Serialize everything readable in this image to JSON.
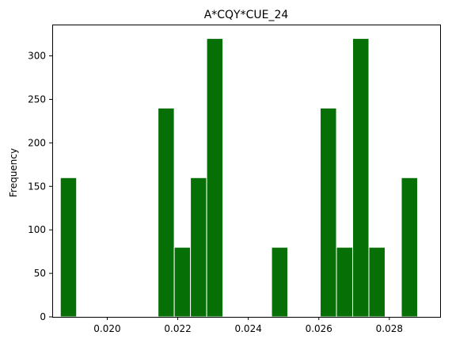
{
  "chart_data": {
    "type": "bar",
    "title": "A*CQY*CUE_24",
    "xlabel": "",
    "ylabel": "Frequency",
    "xlim": [
      0.01844,
      0.02944
    ],
    "ylim": [
      0,
      336
    ],
    "grid": false,
    "legend": "none",
    "bar_color": "#067006",
    "edge_color": "#ffffff",
    "bin_width": 0.00046,
    "bins": [
      {
        "x": 0.01867,
        "value": 160
      },
      {
        "x": 0.02144,
        "value": 240
      },
      {
        "x": 0.0219,
        "value": 80
      },
      {
        "x": 0.02236,
        "value": 160
      },
      {
        "x": 0.02282,
        "value": 320
      },
      {
        "x": 0.02466,
        "value": 80
      },
      {
        "x": 0.02604,
        "value": 240
      },
      {
        "x": 0.0265,
        "value": 80
      },
      {
        "x": 0.02696,
        "value": 320
      },
      {
        "x": 0.02742,
        "value": 80
      },
      {
        "x": 0.02834,
        "value": 160
      }
    ],
    "xticks": [
      {
        "value": 0.02,
        "label": "0.020"
      },
      {
        "value": 0.022,
        "label": "0.022"
      },
      {
        "value": 0.024,
        "label": "0.024"
      },
      {
        "value": 0.026,
        "label": "0.026"
      },
      {
        "value": 0.028,
        "label": "0.028"
      }
    ],
    "yticks": [
      {
        "value": 0,
        "label": "0"
      },
      {
        "value": 50,
        "label": "50"
      },
      {
        "value": 100,
        "label": "100"
      },
      {
        "value": 150,
        "label": "150"
      },
      {
        "value": 200,
        "label": "200"
      },
      {
        "value": 250,
        "label": "250"
      },
      {
        "value": 300,
        "label": "300"
      }
    ]
  }
}
